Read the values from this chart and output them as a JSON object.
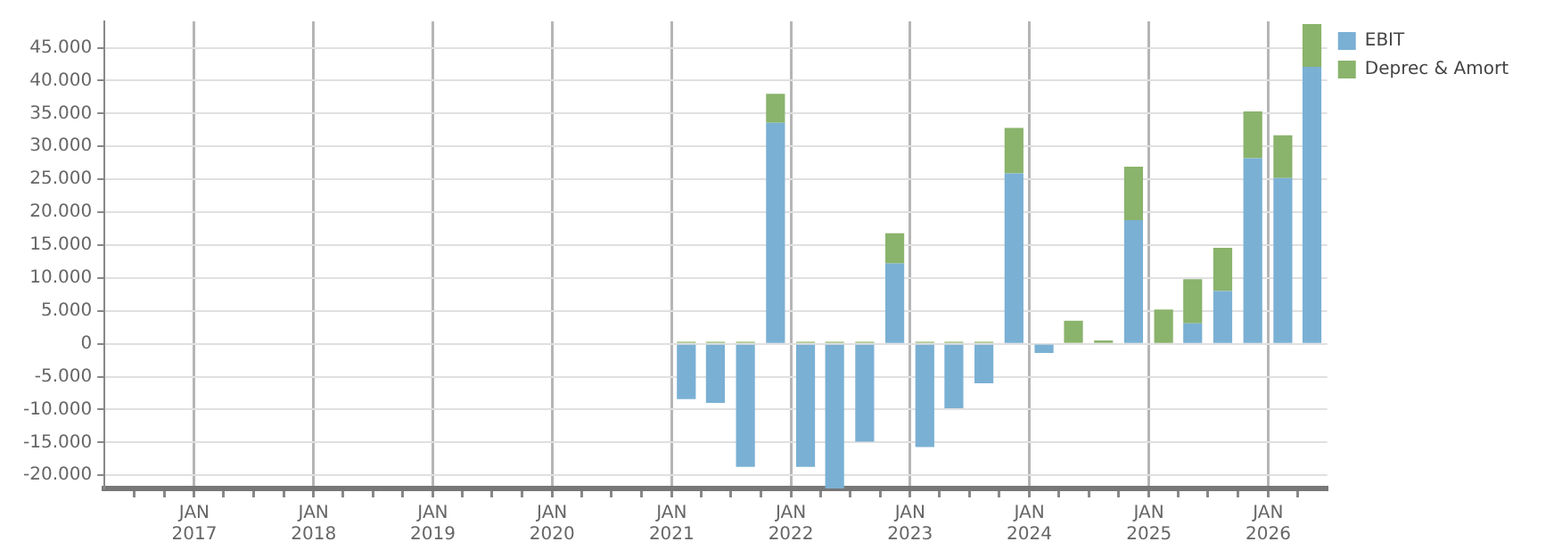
{
  "chart_data": {
    "type": "bar",
    "stacked": true,
    "x": [
      "2021-02-15",
      "2021-05-15",
      "2021-08-15",
      "2021-11-15",
      "2022-02-15",
      "2022-05-15",
      "2022-08-15",
      "2022-11-15",
      "2023-02-15",
      "2023-05-15",
      "2023-08-15",
      "2023-11-15",
      "2024-02-15",
      "2024-05-15",
      "2024-08-15",
      "2024-11-15",
      "2025-02-15",
      "2025-05-15",
      "2025-08-15",
      "2025-11-15",
      "2026-02-15",
      "2026-05-15"
    ],
    "series": [
      {
        "name": "EBIT",
        "color": "#7ab0d4",
        "values": [
          -8400,
          -9000,
          -18700,
          33600,
          -18700,
          -22000,
          -14900,
          12200,
          -15700,
          -9800,
          -6000,
          25900,
          -1400,
          null,
          null,
          18800,
          null,
          3100,
          8000,
          28200,
          25200,
          42100
        ]
      },
      {
        "name": "Deprec & Amort",
        "color": "#8ab36b",
        "values": [
          300,
          300,
          300,
          4400,
          300,
          300,
          300,
          4600,
          300,
          300,
          300,
          6900,
          null,
          3500,
          500,
          8100,
          5200,
          6700,
          6600,
          7100,
          6500,
          6500
        ]
      }
    ],
    "ylim": [
      -22000,
      49000
    ],
    "yticks": [
      {
        "value": -20000,
        "label": "-20.000"
      },
      {
        "value": -15000,
        "label": "-15.000"
      },
      {
        "value": -10000,
        "label": "-10.000"
      },
      {
        "value": -5000,
        "label": "-5.000"
      },
      0,
      {
        "value": 5000,
        "label": "5.000"
      },
      {
        "value": 10000,
        "label": "10.000"
      },
      {
        "value": 15000,
        "label": "15.000"
      },
      {
        "value": 20000,
        "label": "20.000"
      },
      {
        "value": 25000,
        "label": "25.000"
      },
      {
        "value": 30000,
        "label": "30.000"
      },
      {
        "value": 35000,
        "label": "35.000"
      },
      {
        "value": 40000,
        "label": "40.000"
      },
      {
        "value": 45000,
        "label": "45.000"
      }
    ],
    "xlim": [
      "2016-04-01",
      "2026-07-01"
    ],
    "xticks": [
      {
        "value": "2016-07-01",
        "label": null
      },
      {
        "value": "2016-10-01",
        "label": null
      },
      {
        "value": "2017-01-01",
        "label": "JAN\n2017"
      },
      {
        "value": "2017-04-01",
        "label": null
      },
      {
        "value": "2017-07-01",
        "label": null
      },
      {
        "value": "2017-10-01",
        "label": null
      },
      {
        "value": "2018-01-01",
        "label": "JAN\n2018"
      },
      {
        "value": "2018-04-01",
        "label": null
      },
      {
        "value": "2018-07-01",
        "label": null
      },
      {
        "value": "2018-10-01",
        "label": null
      },
      {
        "value": "2019-01-01",
        "label": "JAN\n2019"
      },
      {
        "value": "2019-04-01",
        "label": null
      },
      {
        "value": "2019-07-01",
        "label": null
      },
      {
        "value": "2019-10-01",
        "label": null
      },
      {
        "value": "2020-01-01",
        "label": "JAN\n2020"
      },
      {
        "value": "2020-04-01",
        "label": null
      },
      {
        "value": "2020-07-01",
        "label": null
      },
      {
        "value": "2020-10-01",
        "label": null
      },
      {
        "value": "2021-01-01",
        "label": "JAN\n2021"
      },
      {
        "value": "2021-04-01",
        "label": null
      },
      {
        "value": "2021-07-01",
        "label": null
      },
      {
        "value": "2021-10-01",
        "label": null
      },
      {
        "value": "2022-01-01",
        "label": "JAN\n2022"
      },
      {
        "value": "2022-04-01",
        "label": null
      },
      {
        "value": "2022-07-01",
        "label": null
      },
      {
        "value": "2022-10-01",
        "label": null
      },
      {
        "value": "2023-01-01",
        "label": "JAN\n2023"
      },
      {
        "value": "2023-04-01",
        "label": null
      },
      {
        "value": "2023-07-01",
        "label": null
      },
      {
        "value": "2023-10-01",
        "label": null
      },
      {
        "value": "2024-01-01",
        "label": "JAN\n2024"
      },
      {
        "value": "2024-04-01",
        "label": null
      },
      {
        "value": "2024-07-01",
        "label": null
      },
      {
        "value": "2024-10-01",
        "label": null
      },
      {
        "value": "2025-01-01",
        "label": "JAN\n2025"
      },
      {
        "value": "2025-04-01",
        "label": null
      },
      {
        "value": "2025-07-01",
        "label": null
      },
      {
        "value": "2025-10-01",
        "label": null
      },
      {
        "value": "2026-01-01",
        "label": "JAN\n2026"
      },
      {
        "value": "2026-04-01",
        "label": null
      }
    ],
    "grid": true,
    "legend": "top right"
  }
}
